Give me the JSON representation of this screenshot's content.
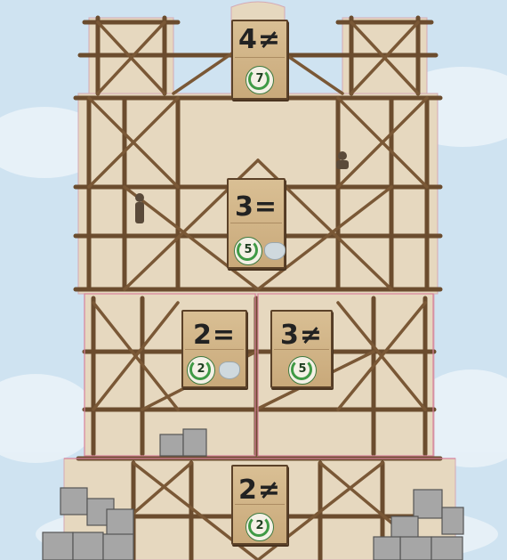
{
  "floors": [
    {
      "id": "top",
      "label": "4≠",
      "badge": "7"
    },
    {
      "id": "upper",
      "label": "3=",
      "badge": "5"
    },
    {
      "id": "mid-left",
      "label": "2=",
      "badge": "2"
    },
    {
      "id": "mid-right",
      "label": "3≠",
      "badge": "5"
    },
    {
      "id": "bottom",
      "label": "2≠",
      "badge": "2"
    }
  ],
  "colors": {
    "sky": "#cfe3f1",
    "wood": "#c8a67a",
    "wood_dark": "#5b4128",
    "laurel": "#3f9a45",
    "stone": "#9a9a9a"
  },
  "icons": [
    "laurel-wreath-icon",
    "cloud-bubble-icon",
    "worker-figure-icon"
  ]
}
